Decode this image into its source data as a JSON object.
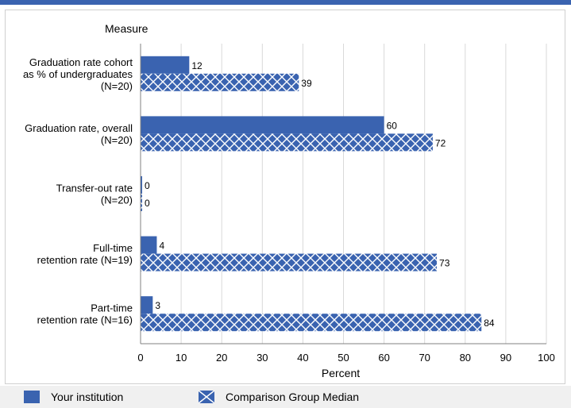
{
  "chart_data": {
    "type": "bar",
    "orientation": "horizontal",
    "y_header": "Measure",
    "xlabel": "Percent",
    "xlim": [
      0,
      100
    ],
    "x_ticks": [
      0,
      10,
      20,
      30,
      40,
      50,
      60,
      70,
      80,
      90,
      100
    ],
    "grid": true,
    "legend_placement": "bottom",
    "categories": [
      [
        "Graduation rate cohort",
        "as % of undergraduates",
        "(N=20)"
      ],
      [
        "Graduation rate, overall",
        "(N=20)"
      ],
      [
        "Transfer-out rate",
        "(N=20)"
      ],
      [
        "Full-time",
        "retention rate (N=19)"
      ],
      [
        "Part-time",
        "retention rate (N=16)"
      ]
    ],
    "series": [
      {
        "name": "Your institution",
        "values": [
          12,
          60,
          0,
          4,
          3
        ],
        "color": "#3a63b0",
        "pattern": "solid"
      },
      {
        "name": "Comparison Group Median",
        "values": [
          39,
          72,
          0,
          73,
          84
        ],
        "color": "#3a63b0",
        "pattern": "crosshatch"
      }
    ]
  }
}
